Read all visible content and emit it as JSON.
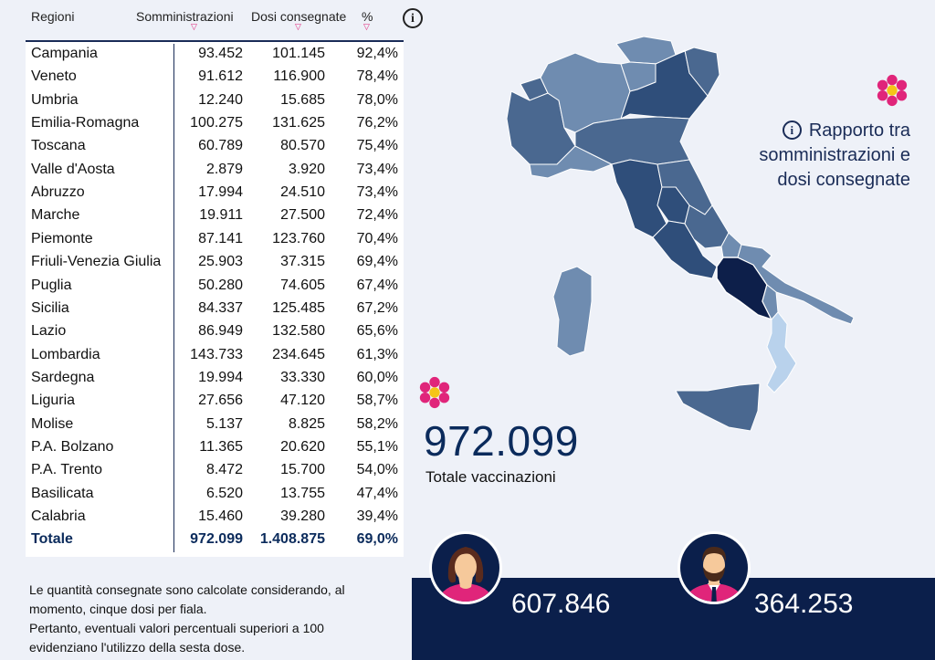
{
  "table": {
    "headers": {
      "region": "Regioni",
      "somm": "Somministrazioni",
      "dosi": "Dosi consegnate",
      "pct": "%"
    },
    "rows": [
      {
        "name": "Campania",
        "somm": "93.452",
        "dosi": "101.145",
        "pct": "92,4%"
      },
      {
        "name": "Veneto",
        "somm": "91.612",
        "dosi": "116.900",
        "pct": "78,4%"
      },
      {
        "name": "Umbria",
        "somm": "12.240",
        "dosi": "15.685",
        "pct": "78,0%"
      },
      {
        "name": "Emilia-Romagna",
        "somm": "100.275",
        "dosi": "131.625",
        "pct": "76,2%"
      },
      {
        "name": "Toscana",
        "somm": "60.789",
        "dosi": "80.570",
        "pct": "75,4%"
      },
      {
        "name": "Valle d'Aosta",
        "somm": "2.879",
        "dosi": "3.920",
        "pct": "73,4%"
      },
      {
        "name": "Abruzzo",
        "somm": "17.994",
        "dosi": "24.510",
        "pct": "73,4%"
      },
      {
        "name": "Marche",
        "somm": "19.911",
        "dosi": "27.500",
        "pct": "72,4%"
      },
      {
        "name": "Piemonte",
        "somm": "87.141",
        "dosi": "123.760",
        "pct": "70,4%"
      },
      {
        "name": "Friuli-Venezia Giulia",
        "somm": "25.903",
        "dosi": "37.315",
        "pct": "69,4%"
      },
      {
        "name": "Puglia",
        "somm": "50.280",
        "dosi": "74.605",
        "pct": "67,4%"
      },
      {
        "name": "Sicilia",
        "somm": "84.337",
        "dosi": "125.485",
        "pct": "67,2%"
      },
      {
        "name": "Lazio",
        "somm": "86.949",
        "dosi": "132.580",
        "pct": "65,6%"
      },
      {
        "name": "Lombardia",
        "somm": "143.733",
        "dosi": "234.645",
        "pct": "61,3%"
      },
      {
        "name": "Sardegna",
        "somm": "19.994",
        "dosi": "33.330",
        "pct": "60,0%"
      },
      {
        "name": "Liguria",
        "somm": "27.656",
        "dosi": "47.120",
        "pct": "58,7%"
      },
      {
        "name": "Molise",
        "somm": "5.137",
        "dosi": "8.825",
        "pct": "58,2%"
      },
      {
        "name": "P.A. Bolzano",
        "somm": "11.365",
        "dosi": "20.620",
        "pct": "55,1%"
      },
      {
        "name": "P.A. Trento",
        "somm": "8.472",
        "dosi": "15.700",
        "pct": "54,0%"
      },
      {
        "name": "Basilicata",
        "somm": "6.520",
        "dosi": "13.755",
        "pct": "47,4%"
      },
      {
        "name": "Calabria",
        "somm": "15.460",
        "dosi": "39.280",
        "pct": "39,4%"
      }
    ],
    "total": {
      "name": "Totale",
      "somm": "972.099",
      "dosi": "1.408.875",
      "pct": "69,0%"
    }
  },
  "info_icon": "i",
  "note_lines": [
    "Le quantità consegnate sono calcolate considerando, al",
    "momento, cinque dosi per fiala.",
    "Pertanto, eventuali valori percentuali superiori a 100",
    "evidenziano l'utilizzo della sesta dose."
  ],
  "rapporto_lines": [
    "Rapporto tra",
    "somministrazioni e",
    "dosi consegnate"
  ],
  "total_vaccinations": "972.099",
  "total_label": "Totale vaccinazioni",
  "women_count": "607.846",
  "men_count": "364.253",
  "icons": {
    "woman": "woman-avatar-icon",
    "man": "man-avatar-icon",
    "flower": "flower-icon",
    "info": "info-icon"
  },
  "colors": {
    "dark_navy": "#0b1f4b",
    "accent_pink": "#e0257a",
    "flower_center": "#f5c518",
    "map_darkest": "#0d1f4a",
    "map_dark": "#2f4e7a",
    "map_mid": "#4a6890",
    "map_light": "#6f8cb0",
    "map_lightest": "#b9d2ec"
  }
}
